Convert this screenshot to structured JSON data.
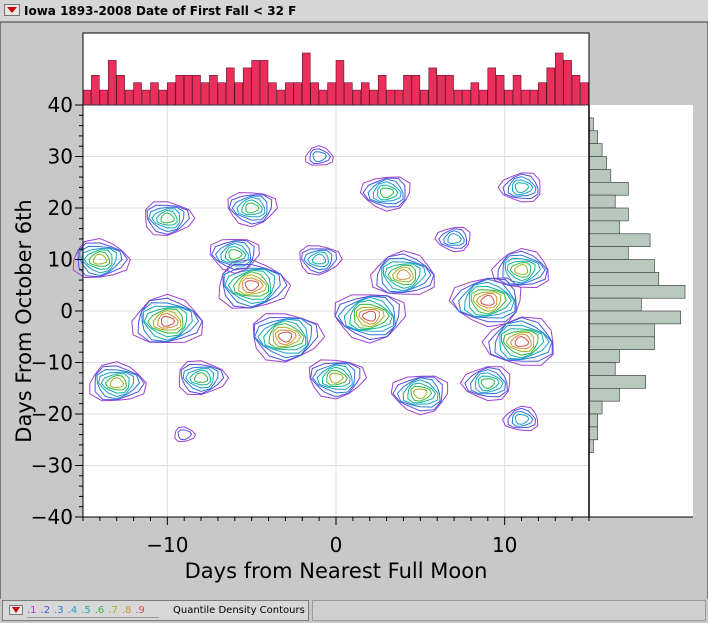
{
  "window": {
    "title": "Iowa 1893-2008 Date of First Fall < 32 F"
  },
  "legend": {
    "levels": [
      ".1",
      ".2",
      ".3",
      ".4",
      ".5",
      ".6",
      ".7",
      ".8",
      ".9"
    ],
    "level_colors": [
      "#a040d0",
      "#5050e0",
      "#2878d8",
      "#1aa0c8",
      "#10b0a0",
      "#30b840",
      "#a0b020",
      "#d09030",
      "#d05050"
    ],
    "label": "Quantile Density Contours"
  },
  "colors": {
    "top_histogram_fill": "#e8305a",
    "right_histogram_fill": "#b8c8bc",
    "plot_background": "#ffffff",
    "grid": "#dddddd"
  },
  "chart_data": {
    "type": "contour",
    "xlabel": "Days from Nearest Full Moon",
    "ylabel": "Days From October 6th",
    "xlim": [
      -15,
      15
    ],
    "ylim": [
      -40,
      40
    ],
    "x_ticks": [
      -10,
      0,
      10
    ],
    "y_ticks": [
      -40,
      -30,
      -20,
      -10,
      0,
      10,
      20,
      30,
      40
    ],
    "grid": true,
    "contour_centers": [
      {
        "x": -10,
        "y": -2,
        "level": 0.9
      },
      {
        "x": -5,
        "y": 5,
        "level": 0.9
      },
      {
        "x": -3,
        "y": -5,
        "level": 0.9
      },
      {
        "x": 2,
        "y": -1,
        "level": 0.9
      },
      {
        "x": 9,
        "y": 2,
        "level": 0.9
      },
      {
        "x": 11,
        "y": -6,
        "level": 0.9
      },
      {
        "x": 4,
        "y": 7,
        "level": 0.8
      },
      {
        "x": -14,
        "y": 10,
        "level": 0.7
      },
      {
        "x": -10,
        "y": 18,
        "level": 0.6
      },
      {
        "x": -5,
        "y": 20,
        "level": 0.6
      },
      {
        "x": 3,
        "y": 23,
        "level": 0.6
      },
      {
        "x": 11,
        "y": 24,
        "level": 0.5
      },
      {
        "x": 11,
        "y": 8,
        "level": 0.7
      },
      {
        "x": -13,
        "y": -14,
        "level": 0.7
      },
      {
        "x": -8,
        "y": -13,
        "level": 0.6
      },
      {
        "x": 0,
        "y": -13,
        "level": 0.7
      },
      {
        "x": 5,
        "y": -16,
        "level": 0.7
      },
      {
        "x": 9,
        "y": -14,
        "level": 0.6
      },
      {
        "x": 11,
        "y": -21,
        "level": 0.4
      },
      {
        "x": -1,
        "y": 30,
        "level": 0.3
      },
      {
        "x": -9,
        "y": -24,
        "level": 0.2
      },
      {
        "x": -1,
        "y": 10,
        "level": 0.5
      },
      {
        "x": -6,
        "y": 11,
        "level": 0.6
      },
      {
        "x": 7,
        "y": 14,
        "level": 0.4
      }
    ],
    "top_histogram": {
      "x_bins": [
        -15,
        -14.5,
        -14,
        -13.5,
        -13,
        -12.5,
        -12,
        -11.5,
        -11,
        -10.5,
        -10,
        -9.5,
        -9,
        -8.5,
        -8,
        -7.5,
        -7,
        -6.5,
        -6,
        -5.5,
        -5,
        -4.5,
        -4,
        -3.5,
        -3,
        -2.5,
        -2,
        -1.5,
        -1,
        -0.5,
        0,
        0.5,
        1,
        1.5,
        2,
        2.5,
        3,
        3.5,
        4,
        4.5,
        5,
        5.5,
        6,
        6.5,
        7,
        7.5,
        8,
        8.5,
        9,
        9.5,
        10,
        10.5,
        11,
        11.5,
        12,
        12.5,
        13,
        13.5,
        14,
        14.5
      ],
      "counts": [
        2,
        4,
        2,
        6,
        4,
        2,
        3,
        2,
        3,
        2,
        3,
        4,
        4,
        4,
        3,
        4,
        3,
        5,
        3,
        5,
        6,
        6,
        3,
        2,
        3,
        3,
        7,
        3,
        2,
        3,
        6,
        3,
        2,
        3,
        2,
        4,
        2,
        2,
        4,
        4,
        2,
        5,
        4,
        4,
        2,
        2,
        3,
        2,
        5,
        4,
        2,
        4,
        2,
        2,
        3,
        5,
        7,
        6,
        4,
        3
      ]
    },
    "right_histogram": {
      "y_bins": [
        35,
        32.5,
        30,
        27.5,
        25,
        22.5,
        20,
        17.5,
        15,
        12.5,
        10,
        7.5,
        5,
        2.5,
        0,
        -2.5,
        -5,
        -7.5,
        -10,
        -12.5,
        -15,
        -17.5,
        -20,
        -22.5,
        -25,
        -27.5
      ],
      "counts": [
        1,
        2,
        3,
        4,
        5,
        9,
        6,
        9,
        7,
        14,
        9,
        15,
        16,
        22,
        12,
        21,
        15,
        15,
        7,
        6,
        13,
        7,
        3,
        2,
        2,
        1
      ]
    }
  }
}
